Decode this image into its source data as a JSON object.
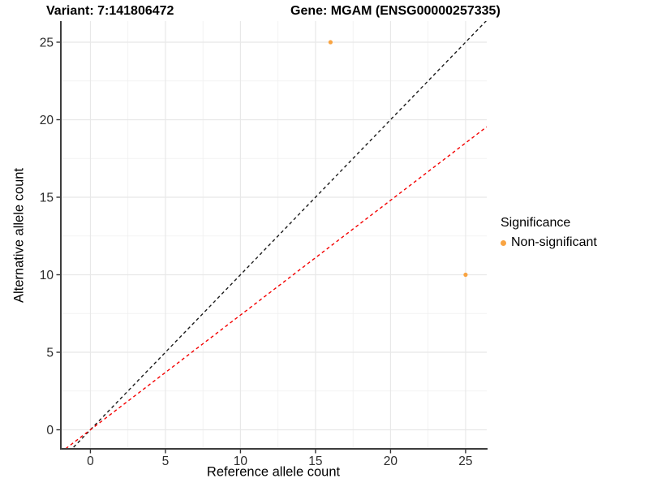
{
  "titles": {
    "variant": "Variant: 7:141806472",
    "gene": "Gene: MGAM (ENSG00000257335)"
  },
  "chart_data": {
    "type": "scatter",
    "title_left": "Variant: 7:141806472",
    "title_right": "Gene: MGAM (ENSG00000257335)",
    "xlabel": "Reference allele count",
    "ylabel": "Alternative allele count",
    "x_ticks": [
      0,
      5,
      10,
      15,
      20,
      25
    ],
    "y_ticks": [
      0,
      5,
      10,
      15,
      20,
      25
    ],
    "xlim": [
      -1.97,
      26.41
    ],
    "ylim": [
      -1.23,
      26.36
    ],
    "grid": "major and minor gridlines, light gray on white panel",
    "points": [
      {
        "x": 16,
        "y": 25,
        "group": "Non-significant"
      },
      {
        "x": 25,
        "y": 10,
        "group": "Non-significant"
      }
    ],
    "reference_lines": [
      {
        "name": "identity",
        "slope": 1,
        "intercept": 0,
        "color": "#1a1a1a",
        "linetype": "dashed"
      },
      {
        "name": "fitted-allelic-ratio",
        "slope": 0.74,
        "intercept": 0,
        "color": "#f40000",
        "linetype": "dashed"
      }
    ],
    "legend": {
      "title": "Significance",
      "position": "right",
      "items": [
        {
          "label": "Non-significant",
          "color": "#F9A442"
        }
      ]
    },
    "colors": {
      "point": "#F9A442",
      "major_grid": "#e8e8e8",
      "minor_grid": "#efefef",
      "axis_line": "#3d3d3d",
      "tick_text": "#2b2b2b"
    }
  }
}
